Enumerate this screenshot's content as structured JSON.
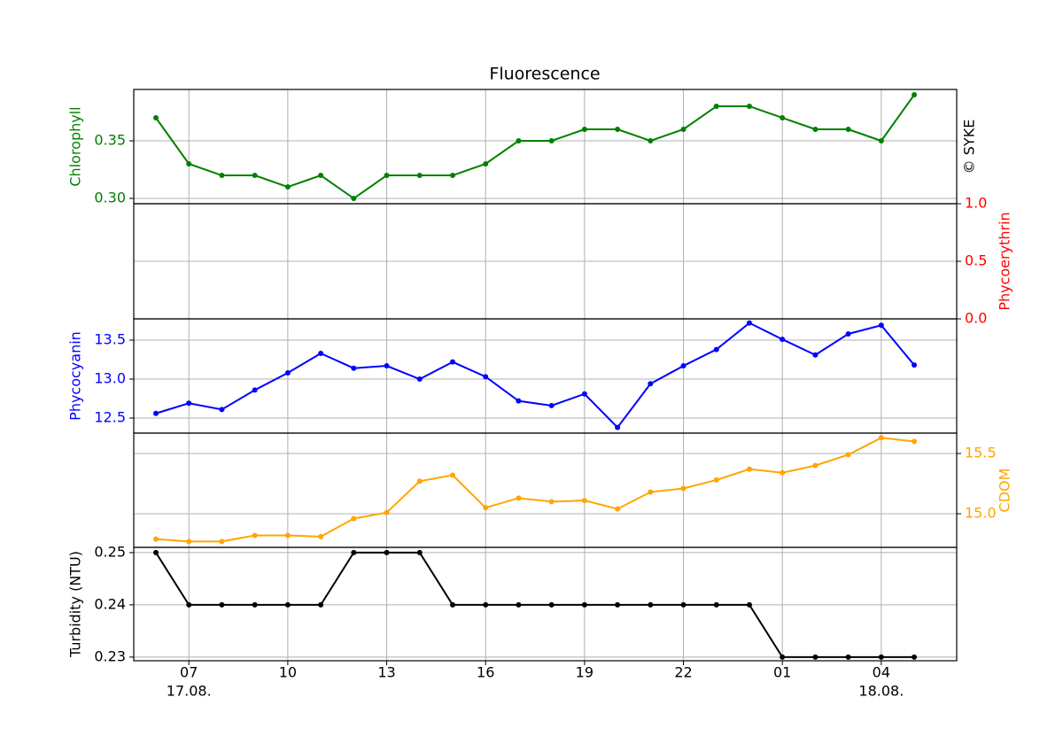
{
  "title": "Fluorescence",
  "credit": "© SYKE",
  "x_axis": {
    "categories": [
      null,
      "07",
      null,
      null,
      "10",
      null,
      null,
      "13",
      null,
      null,
      "16",
      null,
      null,
      "19",
      null,
      null,
      "22",
      null,
      null,
      "01",
      null,
      null,
      "04",
      null
    ],
    "dates": [
      null,
      "17.08.",
      null,
      null,
      null,
      null,
      null,
      null,
      null,
      null,
      null,
      null,
      null,
      null,
      null,
      null,
      null,
      null,
      null,
      null,
      null,
      null,
      "18.08.",
      null
    ],
    "grid": true
  },
  "chart_data": [
    {
      "type": "line",
      "ylabel": "Chlorophyll",
      "axis": "left",
      "color": "#008000",
      "grid": true,
      "ylim": [
        0.2954,
        0.3946
      ],
      "yticks": [
        {
          "value": 0.3,
          "label": "0.30"
        },
        0.35
      ],
      "values": [
        0.37,
        0.33,
        0.32,
        0.32,
        0.31,
        0.32,
        0.3,
        0.32,
        0.32,
        0.32,
        0.33,
        0.35,
        0.35,
        0.36,
        0.36,
        0.35,
        0.36,
        0.38,
        0.38,
        0.37,
        0.36,
        0.36,
        0.35,
        0.39
      ]
    },
    {
      "type": "line",
      "ylabel": "Phycoerythrin",
      "axis": "right",
      "color": "#ff0000",
      "grid": true,
      "ylim": [
        0,
        1
      ],
      "yticks": [
        {
          "value": 0,
          "label": "0.0"
        },
        0.5,
        {
          "value": 1,
          "label": "1.0"
        }
      ],
      "values": [
        null,
        null,
        null,
        null,
        null,
        null,
        null,
        null,
        null,
        null,
        null,
        null,
        null,
        null,
        null,
        null,
        null,
        null,
        null,
        null,
        null,
        null,
        null,
        null
      ]
    },
    {
      "type": "line",
      "ylabel": "Phycocyanin",
      "axis": "left",
      "color": "#0000ff",
      "grid": true,
      "ylim": [
        12.307,
        13.773
      ],
      "yticks": [
        12.5,
        {
          "value": 13,
          "label": "13.0"
        },
        13.5
      ],
      "values": [
        12.56,
        12.69,
        12.61,
        12.86,
        13.08,
        13.33,
        13.14,
        13.17,
        13.0,
        13.22,
        13.03,
        12.72,
        12.66,
        12.81,
        12.38,
        12.94,
        13.17,
        13.38,
        13.72,
        13.51,
        13.31,
        13.58,
        13.69,
        13.18
      ]
    },
    {
      "type": "line",
      "ylabel": "CDOM",
      "axis": "right",
      "color": "#ffa500",
      "grid": true,
      "ylim": [
        14.721,
        15.669
      ],
      "yticks": [
        {
          "value": 15,
          "label": "15.0"
        },
        15.5
      ],
      "values": [
        14.79,
        14.77,
        14.77,
        14.82,
        14.82,
        14.81,
        14.96,
        15.01,
        15.27,
        15.32,
        15.05,
        15.13,
        15.1,
        15.11,
        15.04,
        15.18,
        15.21,
        15.28,
        15.37,
        15.34,
        15.4,
        15.49,
        15.63,
        15.6
      ]
    },
    {
      "type": "line",
      "ylabel": "Turbidity (NTU)",
      "axis": "left",
      "color": "#000000",
      "grid": true,
      "ylim": [
        0.2293,
        0.251
      ],
      "yticks": [
        0.23,
        0.24,
        0.25
      ],
      "values": [
        0.25,
        0.24,
        0.24,
        0.24,
        0.24,
        0.24,
        0.25,
        0.25,
        0.25,
        0.24,
        0.24,
        0.24,
        0.24,
        0.24,
        0.24,
        0.24,
        0.24,
        0.24,
        0.24,
        0.23,
        0.23,
        0.23,
        0.23,
        0.23
      ]
    }
  ]
}
